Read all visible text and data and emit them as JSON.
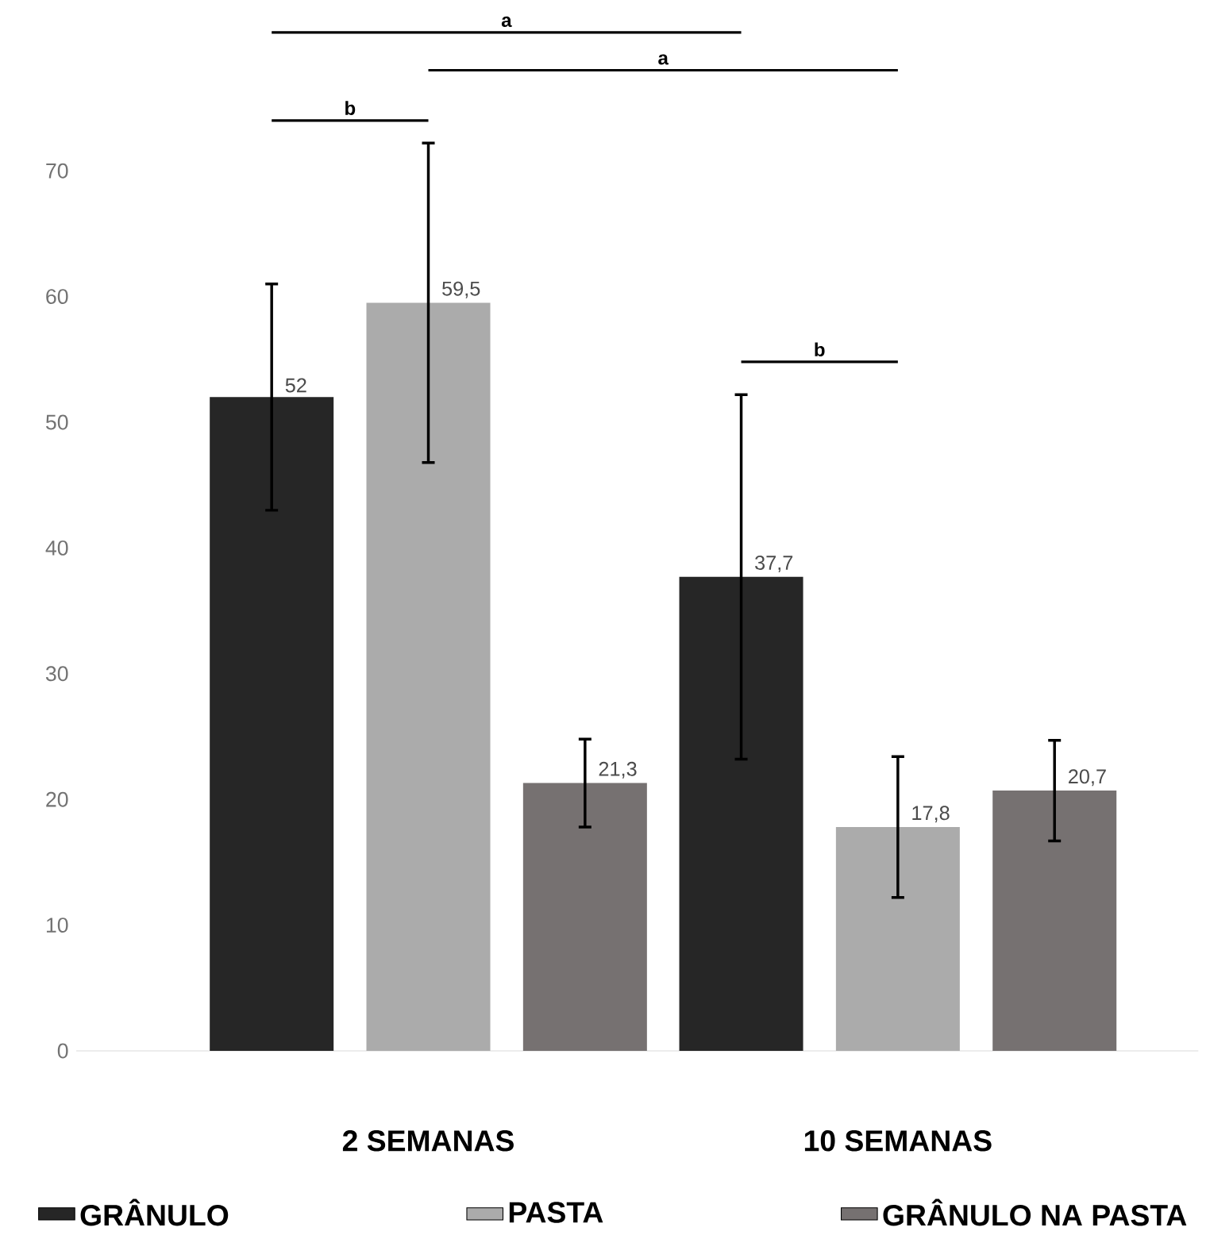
{
  "chart_data": {
    "type": "bar",
    "categories": [
      "2 SEMANAS",
      "10 SEMANAS"
    ],
    "series": [
      {
        "name": "GRÂNULO",
        "color": "#262626",
        "values": [
          52,
          37.7
        ],
        "errors": [
          9,
          14.5
        ],
        "value_labels": [
          "52",
          "37,7"
        ]
      },
      {
        "name": "PASTA",
        "color": "#ababab",
        "values": [
          59.5,
          17.8
        ],
        "errors": [
          12.7,
          5.6
        ],
        "value_labels": [
          "59,5",
          "17,8"
        ]
      },
      {
        "name": "GRÂNULO NA PASTA",
        "color": "#767171",
        "values": [
          21.3,
          20.7
        ],
        "errors": [
          3.5,
          4
        ],
        "value_labels": [
          "21,3",
          "20,7"
        ]
      }
    ],
    "ylim": [
      0,
      70
    ],
    "yticks": [
      0,
      10,
      20,
      30,
      40,
      50,
      60,
      70
    ],
    "grid": false,
    "legend": "bottom",
    "annotations": [
      "a",
      "a",
      "b",
      "b"
    ]
  }
}
